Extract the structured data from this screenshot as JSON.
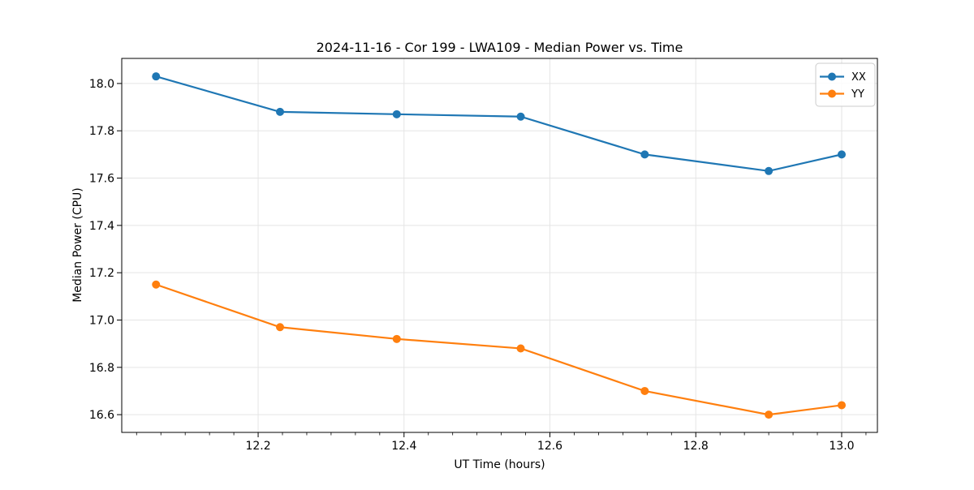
{
  "figure": {
    "background": "#ffffff"
  },
  "chart_data": {
    "type": "line",
    "title": "2024-11-16 - Cor 199 - LWA109 - Median Power vs. Time",
    "xlabel": "UT Time (hours)",
    "ylabel": "Median Power (CPU)",
    "x": [
      12.06,
      12.23,
      12.39,
      12.56,
      12.73,
      12.9,
      13.0
    ],
    "series": [
      {
        "name": "XX",
        "color": "#1f77b4",
        "values": [
          18.03,
          17.88,
          17.87,
          17.86,
          17.7,
          17.63,
          17.7
        ]
      },
      {
        "name": "YY",
        "color": "#ff7f0e",
        "values": [
          17.15,
          16.97,
          16.92,
          16.88,
          16.7,
          16.6,
          16.64
        ]
      }
    ],
    "xlim": [
      12.013,
      13.049
    ],
    "ylim": [
      16.525,
      18.106
    ],
    "xticks": [
      12.2,
      12.4,
      12.6,
      12.8,
      13.0
    ],
    "yticks": [
      16.6,
      16.8,
      17.0,
      17.2,
      17.4,
      17.6,
      17.8,
      18.0
    ],
    "x_minor_divisions": 6,
    "grid": true,
    "grid_color": "#e5e5e5",
    "spine_color": "#000000",
    "legend": {
      "position": "upper right",
      "entries": [
        "XX",
        "YY"
      ]
    }
  }
}
